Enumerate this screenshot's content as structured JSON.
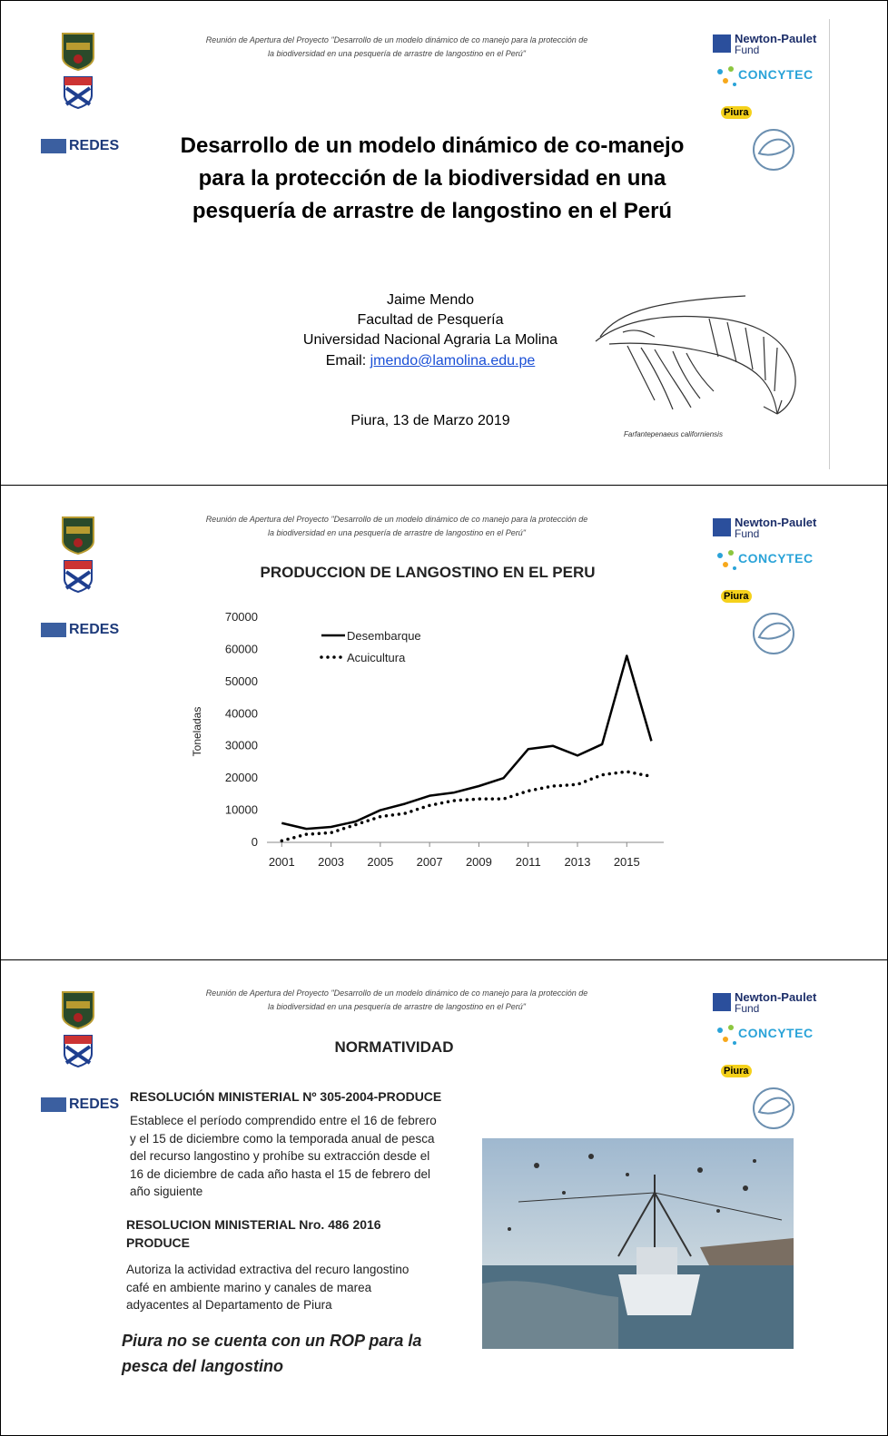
{
  "logos": {
    "redes": "REDES",
    "newton": "Newton-Paulet",
    "fund": "Fund",
    "concytec": "CONCYTEC",
    "piura": "Piura"
  },
  "slides": [
    {
      "header": [
        "Reunión de Apertura del Proyecto \"Desarrollo de un modelo dinámico de co manejo para la protección de",
        "la biodiversidad  en una pesquería de arrastre de langostino en el Perú\""
      ],
      "title": [
        "Desarrollo de un modelo dinámico de co-manejo",
        "para la protección de la biodiversidad  en una",
        "pesquería de arrastre de langostino en el Perú"
      ],
      "author": [
        "Jaime Mendo",
        "Facultad de Pesquería",
        "Universidad Nacional Agraria La Molina"
      ],
      "email_label": "Email:",
      "email": "jmendo@lamolina.edu.pe",
      "date": "Piura, 13 de Marzo 2019",
      "caption": "Farfantepenaeus californiensis"
    },
    {
      "header": [
        "Reunión de Apertura del Proyecto \"Desarrollo de un modelo dinámico de co manejo para la protección de",
        "la biodiversidad  en una pesquería de arrastre de langostino en el Perú\""
      ],
      "chart": {
        "type": "line",
        "title": "PRODUCCION DE LANGOSTINO EN EL PERU",
        "y_label": "Toneladas",
        "x": [
          2001,
          2002,
          2003,
          2004,
          2005,
          2006,
          2007,
          2008,
          2009,
          2010,
          2011,
          2012,
          2013,
          2014,
          2015,
          2016
        ],
        "series": [
          {
            "name": "Desembarque",
            "color": "#000000",
            "style": "solid",
            "values": [
              6000,
              4200,
              4800,
              6500,
              10000,
              12000,
              14500,
              15500,
              17500,
              20000,
              29000,
              30000,
              27000,
              30500,
              58000,
              31500
            ]
          },
          {
            "name": "Acuicultura",
            "color": "#000000",
            "style": "dotted",
            "values": [
              500,
              2500,
              3000,
              5500,
              8000,
              9000,
              11500,
              13000,
              13500,
              13500,
              16000,
              17500,
              18000,
              21000,
              22000,
              20500
            ]
          }
        ],
        "xlim": [
          2000.4,
          2016.5
        ],
        "xticks": [
          2001,
          2003,
          2005,
          2007,
          2009,
          2011,
          2013,
          2015
        ],
        "ylim": [
          0,
          70000
        ],
        "yticks": [
          0,
          10000,
          20000,
          30000,
          40000,
          50000,
          60000,
          70000
        ],
        "legend": "upper left",
        "grid": false
      }
    },
    {
      "header": [
        "Reunión de Apertura del Proyecto \"Desarrollo de un modelo dinámico de co manejo para la protección de",
        "la biodiversidad  en una pesquería de arrastre de langostino en el Perú\""
      ],
      "title": "NORMATIVIDAD",
      "items": [
        {
          "heading": "RESOLUCIÓN MINISTERIAL Nº 305-2004-PRODUCE",
          "text": "Establece el período comprendido entre el 16 de febrero y el 15 de diciembre como la temporada anual de pesca del recurso langostino y prohíbe su extracción desde el 16 de diciembre de cada año hasta el 15 de febrero del año siguiente"
        },
        {
          "heading": "RESOLUCION MINISTERIAL Nro. 486 2016 PRODUCE",
          "text": "Autoriza la actividad extractiva del recuro langostino café en ambiente marino y canales de marea adyacentes al Departamento de Piura"
        }
      ],
      "note": "Piura no se cuenta con un ROP para la pesca del langostino"
    }
  ]
}
